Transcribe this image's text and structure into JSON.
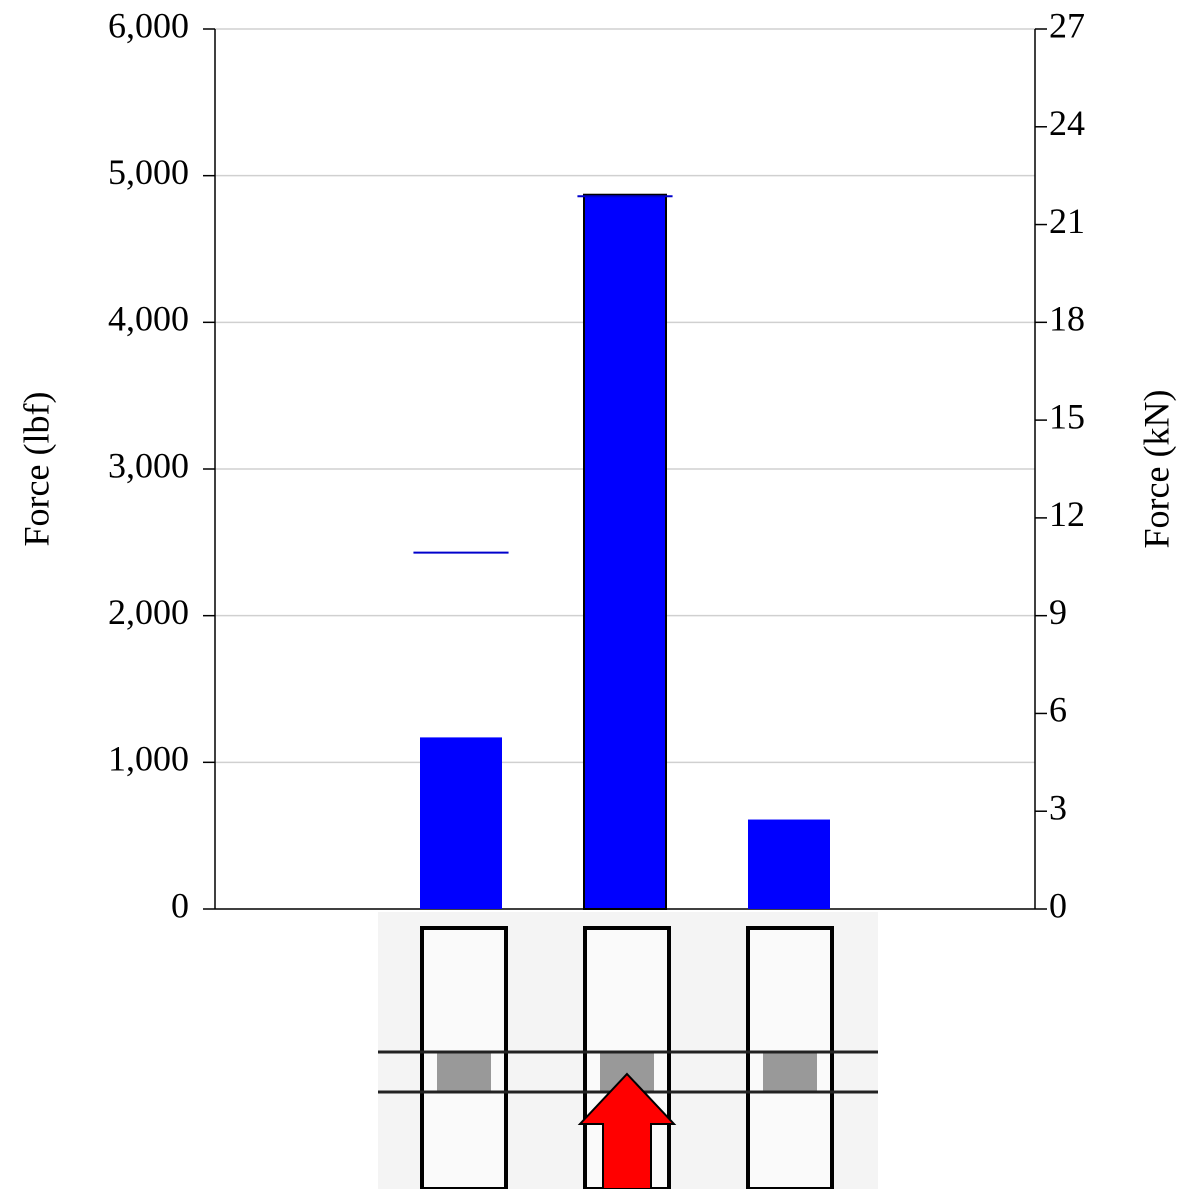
{
  "chart_data": {
    "type": "bar",
    "y_label": "Force (lbf)",
    "y2_label": "Force (kN)",
    "categories": [
      null,
      null,
      null,
      null,
      null
    ],
    "values": [
      null,
      1170,
      4870,
      610,
      null
    ],
    "reference_values": [
      null,
      2430,
      4860,
      null,
      null
    ],
    "color": "#0000ff",
    "reference_color": "#0000cc",
    "ylim": [
      0,
      6000
    ],
    "yticks": [
      0,
      {
        "value": 1000,
        "label": "1,000"
      },
      {
        "value": 2000,
        "label": "2,000"
      },
      {
        "value": 3000,
        "label": "3,000"
      },
      {
        "value": 4000,
        "label": "4,000"
      },
      {
        "value": 5000,
        "label": "5,000"
      },
      {
        "value": 6000,
        "label": "6,000"
      }
    ],
    "y2lim": [
      0,
      27
    ],
    "y2ticks": [
      0,
      3,
      6,
      9,
      12,
      15,
      18,
      21,
      24,
      27
    ],
    "grid": true
  }
}
